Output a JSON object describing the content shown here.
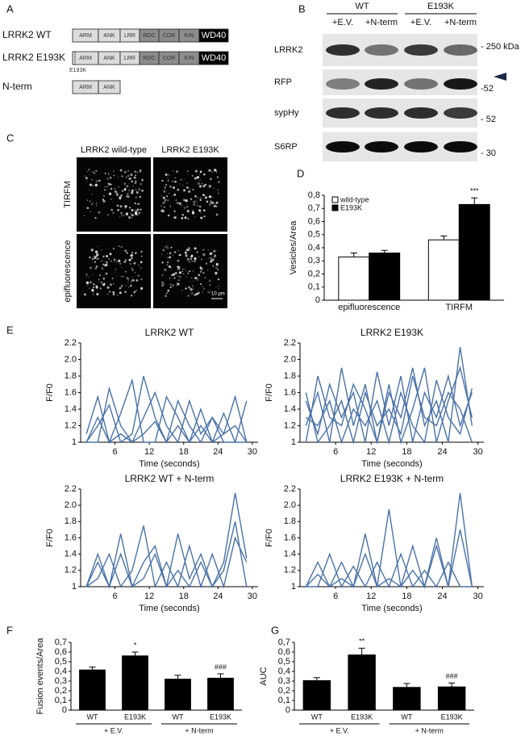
{
  "panel_labels": [
    "A",
    "B",
    "C",
    "D",
    "E",
    "F",
    "G"
  ],
  "diagram": {
    "constructs": [
      {
        "name": "LRRK2 WT",
        "domains": [
          "ARM",
          "ANK",
          "LRR",
          "ROC",
          "COR",
          "KIN",
          "WD40"
        ]
      },
      {
        "name": "LRRK2 E193K",
        "domains": [
          "ARM",
          "ANK",
          "LRR",
          "ROC",
          "COR",
          "KIN",
          "WD40"
        ],
        "mutation": "E193K"
      },
      {
        "name": "N-term",
        "domains": [
          "ARM",
          "ANK"
        ]
      }
    ]
  },
  "blot": {
    "group_labels": [
      "WT",
      "E193K"
    ],
    "lane_labels": [
      "+E.V.",
      "+N-term",
      "+E.V.",
      "+N-term"
    ],
    "rows": [
      {
        "name": "LRRK2",
        "marker": "- 250 kDa"
      },
      {
        "name": "RFP",
        "marker": "-52"
      },
      {
        "name": "sypHy",
        "marker": "- 52"
      },
      {
        "name": "S6RP",
        "marker": "- 30"
      }
    ]
  },
  "micrographs": {
    "columns": [
      "LRRK2 wild-type",
      "LRRK2 E193K"
    ],
    "rows": [
      "TIRFM",
      "epifluorescence"
    ],
    "scale_bar": "10 µm"
  },
  "chart_data": [
    {
      "type": "bar",
      "y_label": "Vesicles/Area",
      "categories": [
        "epifluorescence",
        "TIRFM"
      ],
      "series": [
        {
          "name": "wild-type",
          "color": "#ffffff",
          "values": [
            0.33,
            0.46
          ],
          "errors": [
            0.03,
            0.03
          ],
          "significance": [
            null,
            null
          ]
        },
        {
          "name": "E193K",
          "color": "#000000",
          "values": [
            0.36,
            0.73
          ],
          "errors": [
            0.02,
            0.05
          ],
          "significance": [
            null,
            "***"
          ]
        }
      ],
      "ylim": [
        0,
        0.8
      ],
      "yticks": [
        0,
        {
          "value": 0.1,
          "label": "0,1"
        },
        {
          "value": 0.2,
          "label": "0,2"
        },
        {
          "value": 0.3,
          "label": "0,3"
        },
        {
          "value": 0.4,
          "label": "0,4"
        },
        {
          "value": 0.5,
          "label": "0,5"
        },
        {
          "value": 0.6,
          "label": "0,6"
        },
        {
          "value": 0.7,
          "label": "0,7"
        },
        {
          "value": 0.8,
          "label": "0,8"
        }
      ],
      "legend": "top-left"
    },
    {
      "type": "line",
      "title": "LRRK2 WT",
      "x_label": "Time (seconds)",
      "y_label": "F/F0",
      "x": [
        1,
        3,
        5,
        7,
        9,
        11,
        13,
        15,
        17,
        19,
        21,
        23,
        25,
        27,
        29
      ],
      "series": [
        {
          "color": "#4a72a8",
          "values": [
            1,
            1.2,
            1.45,
            1,
            1.1,
            1.8,
            1.3,
            1,
            1.2,
            1,
            1.4,
            1,
            1.1,
            1.55,
            1
          ]
        },
        {
          "color": "#4a72a8",
          "values": [
            1,
            1,
            1.65,
            1.2,
            1,
            1.3,
            1.6,
            1.2,
            1,
            1.5,
            1.1,
            1.3,
            1,
            1,
            1.5
          ]
        },
        {
          "color": "#4a72a8",
          "values": [
            1.1,
            1.55,
            1,
            1.35,
            1.75,
            1,
            1,
            1.55,
            1.3,
            1,
            1.2,
            1,
            1.35,
            1,
            1
          ]
        },
        {
          "color": "#4a72a8",
          "values": [
            1,
            1.3,
            1,
            1.1,
            1,
            1.1,
            1.25,
            1,
            1.5,
            1.2,
            1,
            1.3,
            1.1,
            1.2,
            1
          ]
        }
      ],
      "xlim": [
        0,
        31
      ],
      "xticks": [
        6,
        12,
        18,
        24,
        30
      ],
      "ylim": [
        1,
        2.2
      ],
      "yticks": [
        1,
        1.2,
        1.4,
        1.6,
        1.8,
        {
          "value": 2,
          "label": "2.0"
        },
        2.2
      ]
    },
    {
      "type": "line",
      "title": "LRRK2 E193K",
      "x_label": "Time (seconds)",
      "y_label": "F/F0",
      "x": [
        1,
        3,
        5,
        7,
        9,
        11,
        13,
        15,
        17,
        19,
        21,
        23,
        25,
        27,
        29
      ],
      "series": [
        {
          "color": "#4a72a8",
          "values": [
            1.2,
            1.6,
            1,
            1.9,
            1.2,
            1.7,
            1,
            1.6,
            1.3,
            1.9,
            1.2,
            1.5,
            1,
            2.15,
            1.2
          ]
        },
        {
          "color": "#4a72a8",
          "values": [
            1.5,
            1.1,
            1.7,
            1.3,
            1.6,
            1,
            1.85,
            1.2,
            1.8,
            1,
            1.6,
            1.3,
            1.8,
            1.2,
            1.6
          ]
        },
        {
          "color": "#4a72a8",
          "values": [
            1,
            1.8,
            1.3,
            1.2,
            1.7,
            1.4,
            1,
            1.7,
            1,
            1.4,
            1.9,
            1,
            1.5,
            1.9,
            1.3
          ]
        },
        {
          "color": "#4a72a8",
          "values": [
            1.3,
            1.2,
            1.5,
            1,
            1.4,
            1.2,
            1.5,
            1,
            1.6,
            1.2,
            1,
            1.75,
            1.3,
            1.1,
            1.65
          ]
        },
        {
          "color": "#4a72a8",
          "values": [
            1.6,
            1,
            1.2,
            1.5,
            1,
            1.6,
            1.2,
            1.4,
            1.1,
            1.8,
            1.3,
            1.2,
            1.6,
            1.4,
            1
          ]
        }
      ],
      "xlim": [
        0,
        31
      ],
      "xticks": [
        6,
        12,
        18,
        24,
        30
      ],
      "ylim": [
        1,
        2.2
      ],
      "yticks": [
        1,
        1.2,
        1.4,
        1.6,
        1.8,
        {
          "value": 2,
          "label": "2.0"
        },
        2.2
      ]
    },
    {
      "type": "line",
      "title": "LRRK2 WT + N-term",
      "x_label": "Time (seconds)",
      "y_label": "F/F0",
      "x": [
        1,
        3,
        5,
        7,
        9,
        11,
        13,
        15,
        17,
        19,
        21,
        23,
        25,
        27,
        29
      ],
      "series": [
        {
          "color": "#4a72a8",
          "values": [
            1,
            1.4,
            1,
            1.65,
            1,
            1.3,
            1.5,
            1,
            1.65,
            1.1,
            1.4,
            1,
            1.3,
            2.15,
            1.35
          ]
        },
        {
          "color": "#4a72a8",
          "values": [
            1,
            1.1,
            1.4,
            1,
            1.2,
            1.75,
            1,
            1.3,
            1,
            1.5,
            1,
            1.4,
            1,
            1.6,
            1.3
          ]
        },
        {
          "color": "#4a72a8",
          "values": [
            1,
            1.3,
            1,
            1.4,
            1,
            1.1,
            1.4,
            1,
            1.2,
            1,
            1.3,
            1,
            1.2,
            1.8,
            1
          ]
        }
      ],
      "xlim": [
        0,
        31
      ],
      "xticks": [
        6,
        12,
        18,
        24,
        30
      ],
      "ylim": [
        1,
        2.2
      ],
      "yticks": [
        1,
        1.2,
        1.4,
        1.6,
        1.8,
        {
          "value": 2,
          "label": "2.0"
        },
        2.2
      ]
    },
    {
      "type": "line",
      "title": "LRRK2 E193K + N-term",
      "x_label": "Time (seconds)",
      "y_label": "F/F0",
      "x": [
        1,
        3,
        5,
        7,
        9,
        11,
        13,
        15,
        17,
        19,
        21,
        23,
        25,
        27,
        29
      ],
      "series": [
        {
          "color": "#4a72a8",
          "values": [
            1,
            1.15,
            1,
            1.3,
            1,
            1.65,
            1,
            1.95,
            1,
            1.5,
            1,
            1.6,
            1,
            2.15,
            1
          ]
        },
        {
          "color": "#4a72a8",
          "values": [
            1,
            1,
            1.4,
            1,
            1.25,
            1,
            1.3,
            1,
            1.4,
            1,
            1.2,
            1,
            1.3,
            1,
            1
          ]
        },
        {
          "color": "#4a72a8",
          "values": [
            1,
            1.3,
            1,
            1.1,
            1,
            1.4,
            1,
            1.1,
            1,
            1.2,
            1,
            1.5,
            1,
            1.7,
            1
          ]
        }
      ],
      "xlim": [
        0,
        31
      ],
      "xticks": [
        6,
        12,
        18,
        24,
        30
      ],
      "ylim": [
        1,
        2.2
      ],
      "yticks": [
        1,
        1.2,
        1.4,
        1.6,
        1.8,
        {
          "value": 2,
          "label": "2.0"
        },
        2.2
      ]
    },
    {
      "type": "bar",
      "y_label": "Fusion events/Area",
      "categories": [
        "WT",
        "E193K",
        "WT",
        "E193K"
      ],
      "groups": [
        "+ E.V.",
        "+ N-term"
      ],
      "color": "#000000",
      "values": [
        0.415,
        0.56,
        0.32,
        0.33
      ],
      "errors": [
        0.03,
        0.04,
        0.04,
        0.045
      ],
      "significance": [
        null,
        "*",
        null,
        "###"
      ],
      "ylim": [
        0,
        0.7
      ],
      "yticks": [
        0,
        {
          "value": 0.1,
          "label": "0,1"
        },
        {
          "value": 0.2,
          "label": "0,2"
        },
        {
          "value": 0.3,
          "label": "0,3"
        },
        {
          "value": 0.4,
          "label": "0,4"
        },
        {
          "value": 0.5,
          "label": "0,5"
        },
        {
          "value": 0.6,
          "label": "0,6"
        },
        {
          "value": 0.7,
          "label": "0,7"
        }
      ]
    },
    {
      "type": "bar",
      "y_label": "AUC",
      "categories": [
        "WT",
        "E193K",
        "WT",
        "E193K"
      ],
      "groups": [
        "+ E.V.",
        "+ N-term"
      ],
      "color": "#000000",
      "values": [
        0.305,
        0.57,
        0.235,
        0.24
      ],
      "errors": [
        0.03,
        0.07,
        0.04,
        0.04
      ],
      "significance": [
        null,
        "**",
        null,
        "###"
      ],
      "ylim": [
        0,
        0.7
      ],
      "yticks": [
        0,
        {
          "value": 0.1,
          "label": "0,1"
        },
        {
          "value": 0.2,
          "label": "0,2"
        },
        {
          "value": 0.3,
          "label": "0,3"
        },
        {
          "value": 0.4,
          "label": "0,4"
        },
        {
          "value": 0.5,
          "label": "0,5"
        },
        {
          "value": 0.6,
          "label": "0,6"
        },
        {
          "value": 0.7,
          "label": "0,7"
        }
      ]
    }
  ]
}
